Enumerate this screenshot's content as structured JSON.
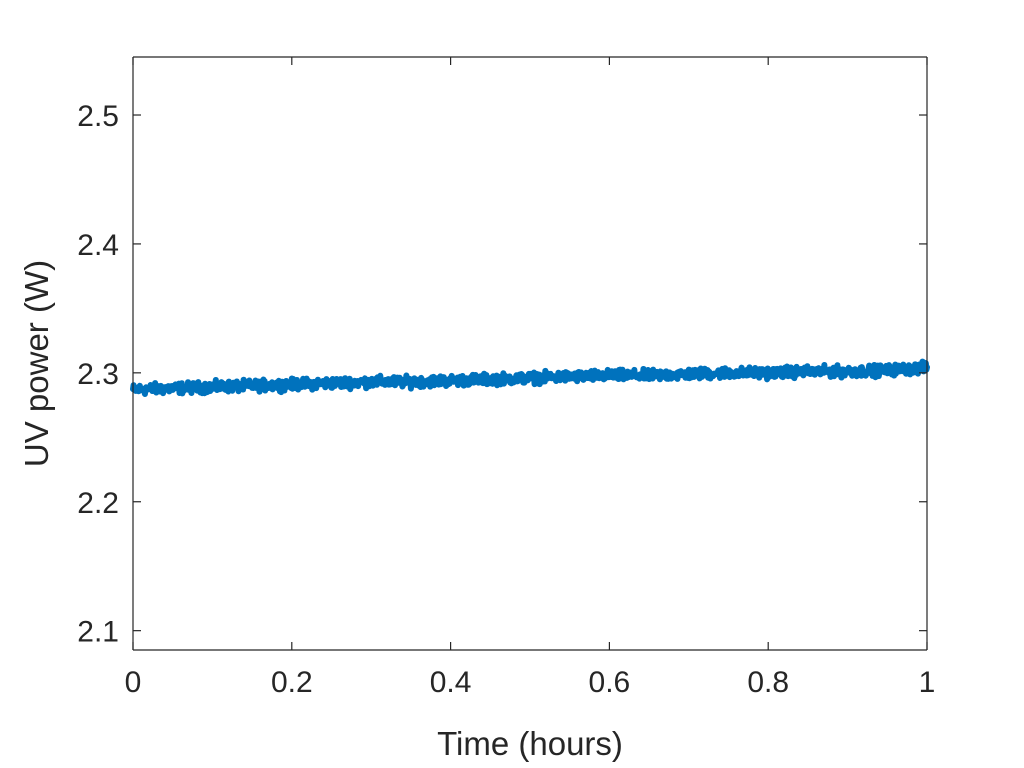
{
  "chart_data": {
    "type": "line",
    "title": "",
    "xlabel": "Time (hours)",
    "ylabel": "UV power (W)",
    "xlim": [
      0,
      1
    ],
    "ylim": [
      2.085,
      2.545
    ],
    "x_ticks": [
      0,
      0.2,
      0.4,
      0.6,
      0.8,
      1
    ],
    "x_tick_labels": [
      "0",
      "0.2",
      "0.4",
      "0.6",
      "0.8",
      "1"
    ],
    "y_ticks": [
      2.1,
      2.2,
      2.3,
      2.4,
      2.5
    ],
    "y_tick_labels": [
      "2.1",
      "2.2",
      "2.3",
      "2.4",
      "2.5"
    ],
    "grid": false,
    "box": true,
    "legend": "none",
    "series": [
      {
        "color": "#0072BD",
        "x": [
          0,
          0.05,
          0.1,
          0.15,
          0.2,
          0.25,
          0.3,
          0.35,
          0.4,
          0.45,
          0.5,
          0.55,
          0.6,
          0.65,
          0.7,
          0.75,
          0.8,
          0.85,
          0.9,
          0.95,
          1.0
        ],
        "y": [
          2.287,
          2.288,
          2.289,
          2.29,
          2.291,
          2.292,
          2.293,
          2.293,
          2.294,
          2.295,
          2.296,
          2.297,
          2.298,
          2.298,
          2.299,
          2.3,
          2.3,
          2.301,
          2.301,
          2.302,
          2.304
        ],
        "noise_amplitude": 0.006
      }
    ]
  }
}
